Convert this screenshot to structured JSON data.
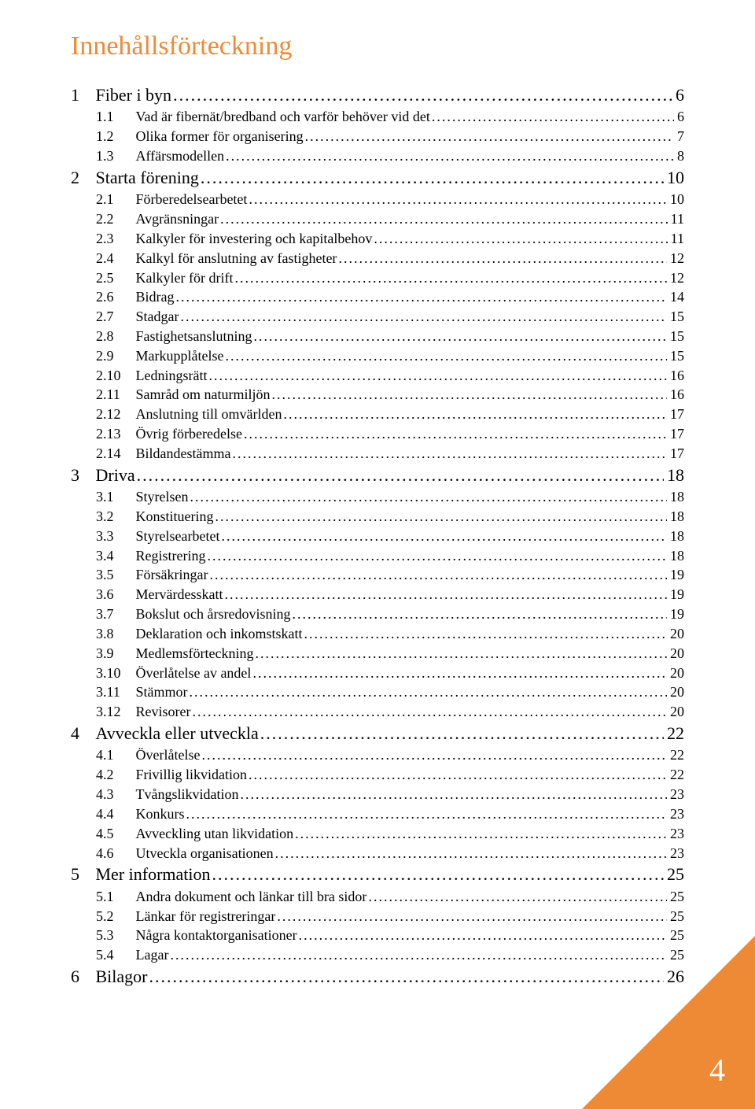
{
  "title": "Innehållsförteckning",
  "title_color": "#ee8a35",
  "triangle_color": "#ee8a35",
  "page_number": "4",
  "toc": [
    {
      "level": 1,
      "num": "1",
      "text": "Fiber i byn",
      "page": "6"
    },
    {
      "level": 2,
      "num": "1.1",
      "text": "Vad är fibernät/bredband och varför behöver vid det",
      "page": "6"
    },
    {
      "level": 2,
      "num": "1.2",
      "text": "Olika former för organisering",
      "page": "7"
    },
    {
      "level": 2,
      "num": "1.3",
      "text": "Affärsmodellen",
      "page": "8"
    },
    {
      "level": 1,
      "num": "2",
      "text": "Starta förening",
      "page": "10"
    },
    {
      "level": 2,
      "num": "2.1",
      "text": "Förberedelsearbetet",
      "page": "10"
    },
    {
      "level": 2,
      "num": "2.2",
      "text": "Avgränsningar",
      "page": "11"
    },
    {
      "level": 2,
      "num": "2.3",
      "text": "Kalkyler för investering och kapitalbehov",
      "page": "11"
    },
    {
      "level": 2,
      "num": "2.4",
      "text": "Kalkyl för anslutning av fastigheter",
      "page": "12"
    },
    {
      "level": 2,
      "num": "2.5",
      "text": "Kalkyler för drift",
      "page": "12"
    },
    {
      "level": 2,
      "num": "2.6",
      "text": "Bidrag",
      "page": "14"
    },
    {
      "level": 2,
      "num": "2.7",
      "text": "Stadgar",
      "page": "15"
    },
    {
      "level": 2,
      "num": "2.8",
      "text": "Fastighetsanslutning",
      "page": "15"
    },
    {
      "level": 2,
      "num": "2.9",
      "text": "Markupplåtelse",
      "page": "15"
    },
    {
      "level": 2,
      "num": "2.10",
      "text": "Ledningsrätt",
      "page": "16"
    },
    {
      "level": 2,
      "num": "2.11",
      "text": "Samråd om naturmiljön",
      "page": "16"
    },
    {
      "level": 2,
      "num": "2.12",
      "text": "Anslutning till omvärlden",
      "page": "17"
    },
    {
      "level": 2,
      "num": "2.13",
      "text": "Övrig förberedelse",
      "page": "17"
    },
    {
      "level": 2,
      "num": "2.14",
      "text": "Bildandestämma",
      "page": "17"
    },
    {
      "level": 1,
      "num": "3",
      "text": "Driva",
      "page": "18"
    },
    {
      "level": 2,
      "num": "3.1",
      "text": "Styrelsen",
      "page": "18"
    },
    {
      "level": 2,
      "num": "3.2",
      "text": "Konstituering",
      "page": "18"
    },
    {
      "level": 2,
      "num": "3.3",
      "text": "Styrelsearbetet",
      "page": "18"
    },
    {
      "level": 2,
      "num": "3.4",
      "text": "Registrering",
      "page": "18"
    },
    {
      "level": 2,
      "num": "3.5",
      "text": "Försäkringar",
      "page": "19"
    },
    {
      "level": 2,
      "num": "3.6",
      "text": "Mervärdesskatt",
      "page": "19"
    },
    {
      "level": 2,
      "num": "3.7",
      "text": "Bokslut och årsredovisning",
      "page": "19"
    },
    {
      "level": 2,
      "num": "3.8",
      "text": "Deklaration och inkomstskatt",
      "page": "20"
    },
    {
      "level": 2,
      "num": "3.9",
      "text": "Medlemsförteckning",
      "page": "20"
    },
    {
      "level": 2,
      "num": "3.10",
      "text": "Överlåtelse av andel",
      "page": "20"
    },
    {
      "level": 2,
      "num": "3.11",
      "text": "Stämmor",
      "page": "20"
    },
    {
      "level": 2,
      "num": "3.12",
      "text": "Revisorer",
      "page": "20"
    },
    {
      "level": 1,
      "num": "4",
      "text": "Avveckla eller utveckla",
      "page": "22"
    },
    {
      "level": 2,
      "num": "4.1",
      "text": "Överlåtelse",
      "page": "22"
    },
    {
      "level": 2,
      "num": "4.2",
      "text": "Frivillig likvidation",
      "page": "22"
    },
    {
      "level": 2,
      "num": "4.3",
      "text": "Tvångslikvidation",
      "page": "23"
    },
    {
      "level": 2,
      "num": "4.4",
      "text": "Konkurs",
      "page": "23"
    },
    {
      "level": 2,
      "num": "4.5",
      "text": "Avveckling utan likvidation",
      "page": "23"
    },
    {
      "level": 2,
      "num": "4.6",
      "text": "Utveckla organisationen",
      "page": "23"
    },
    {
      "level": 1,
      "num": "5",
      "text": "Mer information",
      "page": "25"
    },
    {
      "level": 2,
      "num": "5.1",
      "text": "Andra dokument och länkar till bra sidor",
      "page": "25"
    },
    {
      "level": 2,
      "num": "5.2",
      "text": "Länkar för registreringar",
      "page": "25"
    },
    {
      "level": 2,
      "num": "5.3",
      "text": "Några kontaktorganisationer",
      "page": "25"
    },
    {
      "level": 2,
      "num": "5.4",
      "text": "Lagar",
      "page": "25"
    },
    {
      "level": 1,
      "num": "6",
      "text": "Bilagor",
      "page": "26"
    }
  ]
}
